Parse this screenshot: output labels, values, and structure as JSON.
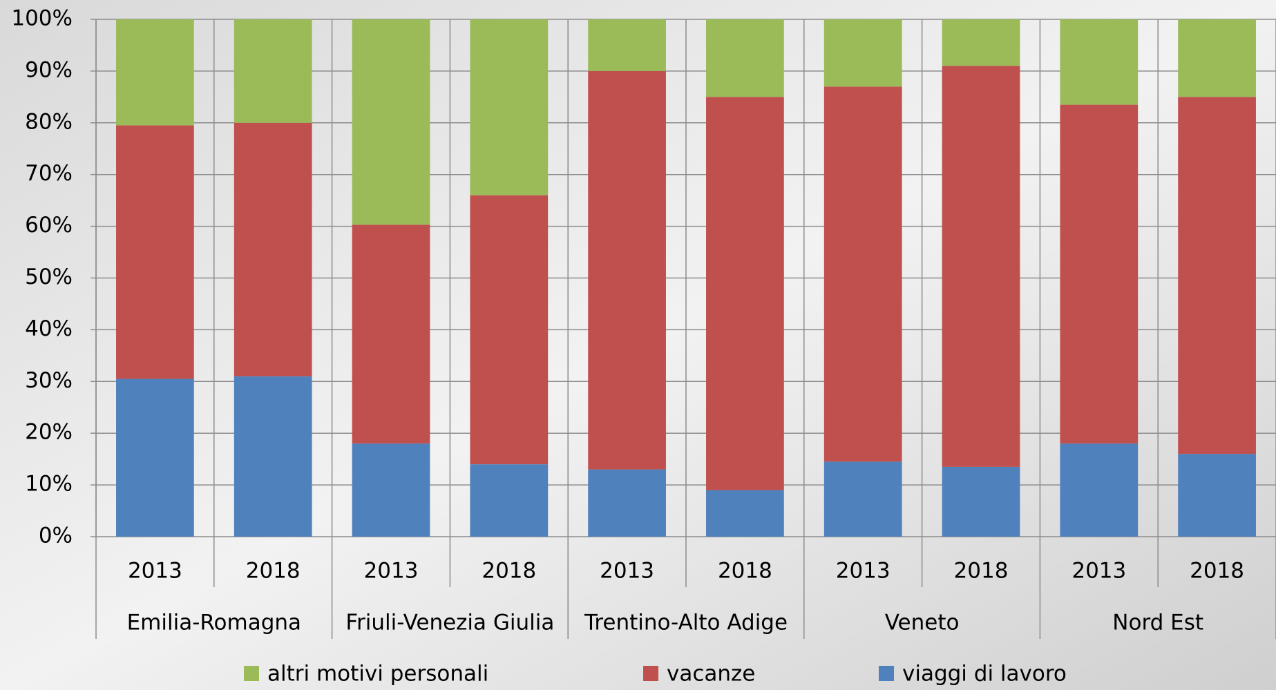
{
  "chart_data": {
    "type": "bar",
    "stacked": true,
    "categories": [
      "2013",
      "2018",
      "2013",
      "2018",
      "2013",
      "2018",
      "2013",
      "2018",
      "2013",
      "2018"
    ],
    "groups": [
      "Emilia-Romagna",
      "Friuli-Venezia Giulia",
      "Trentino-Alto Adige",
      "Veneto",
      "Nord Est"
    ],
    "series": [
      {
        "name": "viaggi di lavoro",
        "color": "#4f81bd",
        "values": [
          30.5,
          31,
          18,
          14,
          13,
          9,
          14.5,
          13.5,
          18,
          16
        ]
      },
      {
        "name": "vacanze",
        "color": "#c0504d",
        "values": [
          49,
          49,
          42.3,
          52,
          77,
          76,
          72.5,
          77.5,
          65.5,
          69
        ]
      },
      {
        "name": "altri motivi personali",
        "color": "#9bbb59",
        "values": [
          20.5,
          20,
          39.7,
          34,
          10,
          15,
          13,
          9,
          16.5,
          15
        ]
      }
    ],
    "ylim": [
      0,
      100
    ],
    "yticks": [
      {
        "value": 0,
        "label": "0%"
      },
      {
        "value": 10,
        "label": "10%"
      },
      {
        "value": 20,
        "label": "20%"
      },
      {
        "value": 30,
        "label": "30%"
      },
      {
        "value": 40,
        "label": "40%"
      },
      {
        "value": 50,
        "label": "50%"
      },
      {
        "value": 60,
        "label": "60%"
      },
      {
        "value": 70,
        "label": "70%"
      },
      {
        "value": 80,
        "label": "80%"
      },
      {
        "value": 90,
        "label": "90%"
      },
      {
        "value": 100,
        "label": "100%"
      }
    ],
    "grid": true,
    "legend": "bottom"
  }
}
